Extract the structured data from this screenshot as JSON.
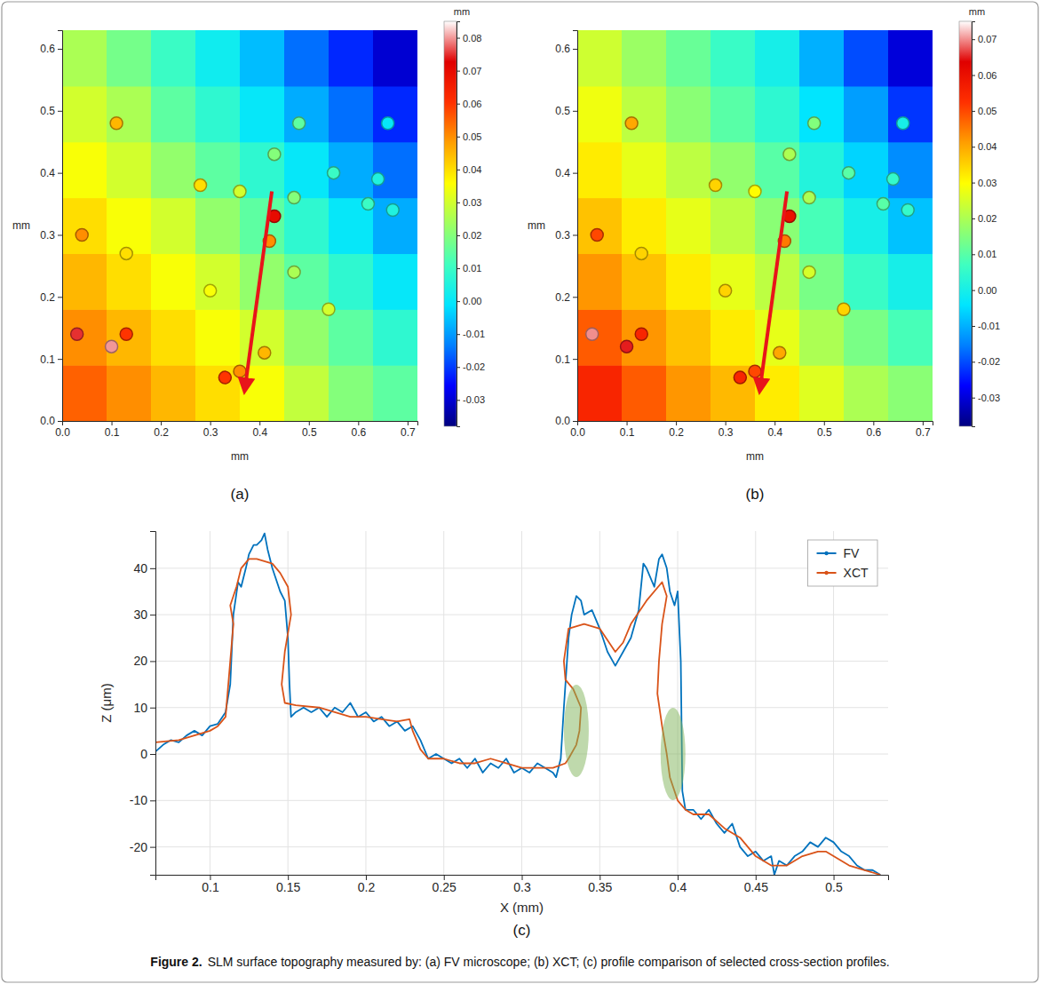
{
  "caption": {
    "label": "Figure 2.",
    "text": "SLM surface topography measured by: (a) FV microscope; (b) XCT; (c) profile comparison of selected cross-section profiles."
  },
  "chart_data": [
    {
      "type": "heatmap",
      "panel_label": "(a)",
      "xlabel": "mm",
      "ylabel": "mm",
      "xlim": [
        0,
        0.72
      ],
      "ylim": [
        0,
        0.63
      ],
      "xticks": [
        {
          "value": 0,
          "label": "0.0"
        },
        0.1,
        0.2,
        0.3,
        0.4,
        0.5,
        0.6,
        0.7
      ],
      "yticks": [
        {
          "value": 0,
          "label": "0.0"
        },
        0.1,
        0.2,
        0.3,
        0.4,
        0.5,
        0.6
      ],
      "x_edges": [
        0,
        0.09,
        0.18,
        0.27,
        0.36,
        0.45,
        0.54,
        0.63,
        0.72
      ],
      "y_edges": [
        0,
        0.09,
        0.18,
        0.27,
        0.36,
        0.45,
        0.54,
        0.63
      ],
      "z": [
        [
          0.055,
          0.05,
          0.045,
          0.04,
          0.035,
          0.028,
          0.02,
          0.015
        ],
        [
          0.05,
          0.045,
          0.04,
          0.035,
          0.03,
          0.022,
          0.015,
          0.008
        ],
        [
          0.045,
          0.04,
          0.035,
          0.03,
          0.022,
          0.015,
          0.008,
          0.0
        ],
        [
          0.04,
          0.035,
          0.03,
          0.022,
          0.015,
          0.008,
          0.0,
          -0.008
        ],
        [
          0.035,
          0.03,
          0.022,
          0.015,
          0.008,
          0.0,
          -0.008,
          -0.015
        ],
        [
          0.03,
          0.025,
          0.015,
          0.008,
          0.0,
          -0.008,
          -0.015,
          -0.022
        ],
        [
          0.025,
          0.018,
          0.01,
          0.002,
          -0.006,
          -0.015,
          -0.022,
          -0.03
        ]
      ],
      "peaks": {
        "x": [
          0.03,
          0.1,
          0.13,
          0.04,
          0.11,
          0.13,
          0.28,
          0.3,
          0.33,
          0.36,
          0.41,
          0.42,
          0.43,
          0.36,
          0.47,
          0.47,
          0.54,
          0.43,
          0.48,
          0.55,
          0.62,
          0.64,
          0.67,
          0.66
        ],
        "y": [
          0.14,
          0.12,
          0.14,
          0.3,
          0.48,
          0.27,
          0.38,
          0.21,
          0.07,
          0.08,
          0.11,
          0.29,
          0.33,
          0.37,
          0.24,
          0.36,
          0.18,
          0.43,
          0.48,
          0.4,
          0.35,
          0.39,
          0.34,
          0.48
        ],
        "z": [
          0.075,
          0.08,
          0.06,
          0.05,
          0.045,
          0.04,
          0.04,
          0.035,
          0.06,
          0.05,
          0.045,
          0.05,
          0.07,
          0.03,
          0.025,
          0.02,
          0.03,
          0.02,
          0.015,
          0.01,
          0.01,
          0.005,
          0.005,
          0.0
        ]
      },
      "profile": {
        "x": [
          0.425,
          0.37
        ],
        "y": [
          0.37,
          0.05
        ],
        "color": "#e8141a"
      },
      "colorbar": {
        "label": "mm",
        "range": [
          -0.038,
          0.085
        ],
        "ticks": [
          -0.03,
          -0.02,
          -0.01,
          {
            "value": 0,
            "label": "0.00"
          },
          0.01,
          0.02,
          0.03,
          0.04,
          0.05,
          0.06,
          0.07,
          0.08
        ]
      }
    },
    {
      "type": "heatmap",
      "panel_label": "(b)",
      "xlabel": "mm",
      "ylabel": "mm",
      "xlim": [
        0,
        0.72
      ],
      "ylim": [
        0,
        0.63
      ],
      "xticks": [
        {
          "value": 0,
          "label": "0.0"
        },
        0.1,
        0.2,
        0.3,
        0.4,
        0.5,
        0.6,
        0.7
      ],
      "yticks": [
        {
          "value": 0,
          "label": "0.0"
        },
        0.1,
        0.2,
        0.3,
        0.4,
        0.5,
        0.6
      ],
      "x_edges": [
        0,
        0.09,
        0.18,
        0.27,
        0.36,
        0.45,
        0.54,
        0.63,
        0.72
      ],
      "y_edges": [
        0,
        0.09,
        0.18,
        0.27,
        0.36,
        0.45,
        0.54,
        0.63
      ],
      "z": [
        [
          0.055,
          0.048,
          0.042,
          0.038,
          0.032,
          0.026,
          0.02,
          0.016
        ],
        [
          0.048,
          0.042,
          0.037,
          0.032,
          0.027,
          0.02,
          0.014,
          0.008
        ],
        [
          0.042,
          0.037,
          0.032,
          0.027,
          0.022,
          0.014,
          0.006,
          0.0
        ],
        [
          0.037,
          0.032,
          0.027,
          0.022,
          0.016,
          0.008,
          0.0,
          -0.008
        ],
        [
          0.032,
          0.027,
          0.022,
          0.017,
          0.01,
          0.002,
          -0.006,
          -0.014
        ],
        [
          0.028,
          0.022,
          0.016,
          0.01,
          0.004,
          -0.004,
          -0.012,
          -0.022
        ],
        [
          0.024,
          0.018,
          0.012,
          0.006,
          0.0,
          -0.01,
          -0.02,
          -0.03
        ]
      ],
      "peaks": {
        "x": [
          0.03,
          0.1,
          0.13,
          0.04,
          0.11,
          0.13,
          0.28,
          0.3,
          0.33,
          0.36,
          0.41,
          0.42,
          0.43,
          0.36,
          0.47,
          0.47,
          0.54,
          0.43,
          0.48,
          0.55,
          0.62,
          0.64,
          0.67,
          0.66
        ],
        "y": [
          0.14,
          0.12,
          0.14,
          0.3,
          0.48,
          0.27,
          0.38,
          0.21,
          0.07,
          0.08,
          0.11,
          0.29,
          0.33,
          0.37,
          0.24,
          0.36,
          0.18,
          0.43,
          0.48,
          0.4,
          0.35,
          0.39,
          0.34,
          0.48
        ],
        "z": [
          0.07,
          0.065,
          0.055,
          0.05,
          0.04,
          0.035,
          0.035,
          0.035,
          0.055,
          0.05,
          0.04,
          0.045,
          0.06,
          0.03,
          0.025,
          0.02,
          0.035,
          0.02,
          0.015,
          0.01,
          0.01,
          0.005,
          0.005,
          0.0
        ]
      },
      "profile": {
        "x": [
          0.425,
          0.37
        ],
        "y": [
          0.37,
          0.05
        ],
        "color": "#e8141a"
      },
      "colorbar": {
        "label": "mm",
        "range": [
          -0.038,
          0.075
        ],
        "ticks": [
          -0.03,
          -0.02,
          -0.01,
          {
            "value": 0,
            "label": "0.00"
          },
          0.01,
          0.02,
          0.03,
          0.04,
          0.05,
          0.06,
          0.07
        ]
      }
    },
    {
      "type": "line",
      "panel_label": "(c)",
      "xlabel": "X (mm)",
      "ylabel": "Z (μm)",
      "xlim": [
        0.065,
        0.535
      ],
      "ylim": [
        -26,
        48
      ],
      "xticks": [
        0.1,
        0.15,
        0.2,
        0.25,
        0.3,
        0.35,
        0.4,
        0.45,
        0.5
      ],
      "yticks": [
        -20,
        -10,
        0,
        10,
        20,
        30,
        40
      ],
      "grid": true,
      "legend": "northeast",
      "series": [
        {
          "name": "FV",
          "color": "#0072bd",
          "x": [
            0.065,
            0.07,
            0.075,
            0.08,
            0.085,
            0.09,
            0.095,
            0.1,
            0.105,
            0.11,
            0.113,
            0.115,
            0.118,
            0.12,
            0.123,
            0.125,
            0.128,
            0.13,
            0.133,
            0.135,
            0.137,
            0.14,
            0.142,
            0.145,
            0.148,
            0.15,
            0.151,
            0.152,
            0.155,
            0.16,
            0.165,
            0.17,
            0.175,
            0.18,
            0.185,
            0.19,
            0.195,
            0.2,
            0.205,
            0.21,
            0.215,
            0.22,
            0.225,
            0.23,
            0.235,
            0.24,
            0.245,
            0.25,
            0.255,
            0.26,
            0.265,
            0.27,
            0.275,
            0.28,
            0.285,
            0.29,
            0.295,
            0.3,
            0.305,
            0.31,
            0.315,
            0.32,
            0.322,
            0.325,
            0.327,
            0.33,
            0.332,
            0.335,
            0.338,
            0.34,
            0.345,
            0.35,
            0.355,
            0.36,
            0.365,
            0.37,
            0.375,
            0.378,
            0.38,
            0.385,
            0.388,
            0.39,
            0.393,
            0.395,
            0.398,
            0.4,
            0.402,
            0.403,
            0.405,
            0.41,
            0.415,
            0.42,
            0.425,
            0.43,
            0.435,
            0.44,
            0.445,
            0.45,
            0.455,
            0.46,
            0.462,
            0.465,
            0.47,
            0.475,
            0.48,
            0.485,
            0.49,
            0.495,
            0.5,
            0.505,
            0.51,
            0.515,
            0.52,
            0.525,
            0.53
          ],
          "values": [
            0.5,
            2,
            3,
            2.5,
            4,
            5,
            4,
            6,
            6.5,
            9,
            15,
            30,
            37,
            36,
            40,
            43,
            45,
            45,
            46,
            47.5,
            44,
            40,
            38,
            35,
            33,
            25,
            15,
            8,
            9,
            10,
            9,
            10,
            8,
            10,
            9,
            11,
            8,
            9,
            7,
            8,
            6,
            7,
            5,
            6,
            3,
            -1,
            0,
            -1,
            -2,
            -1,
            -3,
            -1,
            -4,
            -2,
            -3,
            -1,
            -4,
            -3,
            -4,
            -2,
            -3,
            -4,
            -5,
            -1,
            10,
            25,
            30,
            34,
            33,
            30,
            31,
            27,
            22,
            19,
            22,
            25,
            31,
            41,
            40,
            36,
            42,
            43,
            40,
            35,
            32,
            35,
            20,
            -8,
            -12,
            -12,
            -14,
            -12,
            -15,
            -17,
            -15,
            -20,
            -22,
            -21,
            -23,
            -22,
            -26,
            -23,
            -24,
            -22,
            -21,
            -19,
            -20,
            -18,
            -19,
            -21,
            -22,
            -24,
            -25,
            -25,
            -26
          ]
        },
        {
          "name": "XCT",
          "color": "#d95319",
          "x": [
            0.065,
            0.08,
            0.09,
            0.1,
            0.105,
            0.11,
            0.113,
            0.115,
            0.113,
            0.117,
            0.12,
            0.125,
            0.13,
            0.14,
            0.145,
            0.15,
            0.152,
            0.148,
            0.146,
            0.148,
            0.155,
            0.17,
            0.18,
            0.19,
            0.2,
            0.21,
            0.22,
            0.228,
            0.23,
            0.235,
            0.24,
            0.25,
            0.26,
            0.27,
            0.28,
            0.29,
            0.3,
            0.31,
            0.32,
            0.328,
            0.33,
            0.335,
            0.337,
            0.338,
            0.333,
            0.328,
            0.327,
            0.33,
            0.34,
            0.35,
            0.36,
            0.365,
            0.37,
            0.38,
            0.39,
            0.393,
            0.39,
            0.388,
            0.387,
            0.39,
            0.393,
            0.395,
            0.4,
            0.405,
            0.41,
            0.42,
            0.43,
            0.44,
            0.45,
            0.46,
            0.47,
            0.48,
            0.49,
            0.495,
            0.5,
            0.51,
            0.52,
            0.53
          ],
          "values": [
            2.5,
            3,
            4,
            5,
            6,
            8,
            20,
            28,
            32,
            36,
            40,
            42,
            42,
            41,
            39,
            36,
            30,
            22,
            15,
            11,
            10.5,
            10,
            9,
            8,
            8,
            7.5,
            7,
            7.5,
            5,
            1,
            -1,
            -1,
            -2,
            -2,
            -1,
            -2,
            -3,
            -3,
            -3,
            -2,
            -1,
            2,
            5,
            10,
            14,
            16,
            20,
            27,
            28,
            27,
            22,
            24,
            28,
            33,
            37,
            34,
            28,
            20,
            13,
            6,
            0,
            -5,
            -10,
            -12,
            -13,
            -13,
            -16,
            -18,
            -22,
            -24,
            -24,
            -22,
            -21,
            -21,
            -22,
            -24,
            -25,
            -26
          ]
        }
      ],
      "highlights": [
        {
          "x": 0.335,
          "y": 5
        },
        {
          "x": 0.397,
          "y": 0
        }
      ]
    }
  ]
}
